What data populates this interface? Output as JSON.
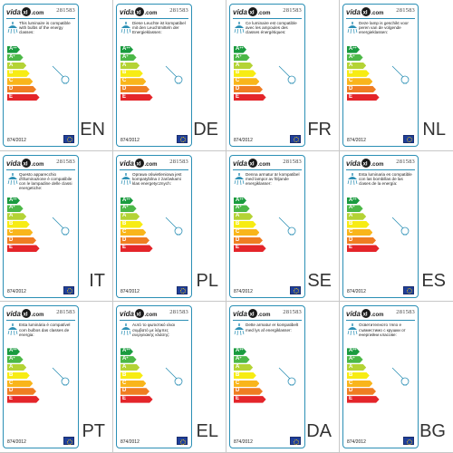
{
  "common": {
    "brand_text": "vida",
    "brand_suffix": "xl",
    "brand_tld": ".com",
    "product_code": "281583",
    "regulation": "874/2012",
    "classes": [
      "A++",
      "A+",
      "A",
      "B",
      "C",
      "D",
      "E"
    ],
    "class_colors": [
      "#1a9b3f",
      "#4cb847",
      "#b4d335",
      "#f7ec13",
      "#f9b51b",
      "#ef7d22",
      "#e4252a"
    ]
  },
  "labels": [
    {
      "lang": "EN",
      "statement": "This luminaire is compatible with bulbs of the energy classes:"
    },
    {
      "lang": "DE",
      "statement": "Diese Leuchte ist kompatibel mit den Leuchtmitteln der Energieklassen:"
    },
    {
      "lang": "FR",
      "statement": "Ce luminaire est compatible avec les ampoules des classes énergétiques:"
    },
    {
      "lang": "NL",
      "statement": "Deze lamp is geschikt voor peren van de volgende energieklassen:"
    },
    {
      "lang": "IT",
      "statement": "Questo apparecchio d'illuminazione è compatibile con le lampadine delle classi energetiche:"
    },
    {
      "lang": "PL",
      "statement": "Oprawa oświetleniowa jest kompatybilna z żarówkami klas energetycznych:"
    },
    {
      "lang": "SE",
      "statement": "Denna armatur är kompatibel med lampor av följande energiklasser:"
    },
    {
      "lang": "ES",
      "statement": "Esta luminaria es compatible con las bombillas de las clases de la energía:"
    },
    {
      "lang": "PT",
      "statement": "Esta luminária é compatível com bulbos das classes de energia:"
    },
    {
      "lang": "EL",
      "statement": "Αυτό το φωτιστικό είναι συμβατό με λάμπες ενεργειακής κλάσης:"
    },
    {
      "lang": "DA",
      "statement": "Dette armatur er kompatibelt med lys af energiklasser:"
    },
    {
      "lang": "BG",
      "statement": "Осветителното тяло е съвместимо с крушки от енергийни класове:"
    }
  ]
}
